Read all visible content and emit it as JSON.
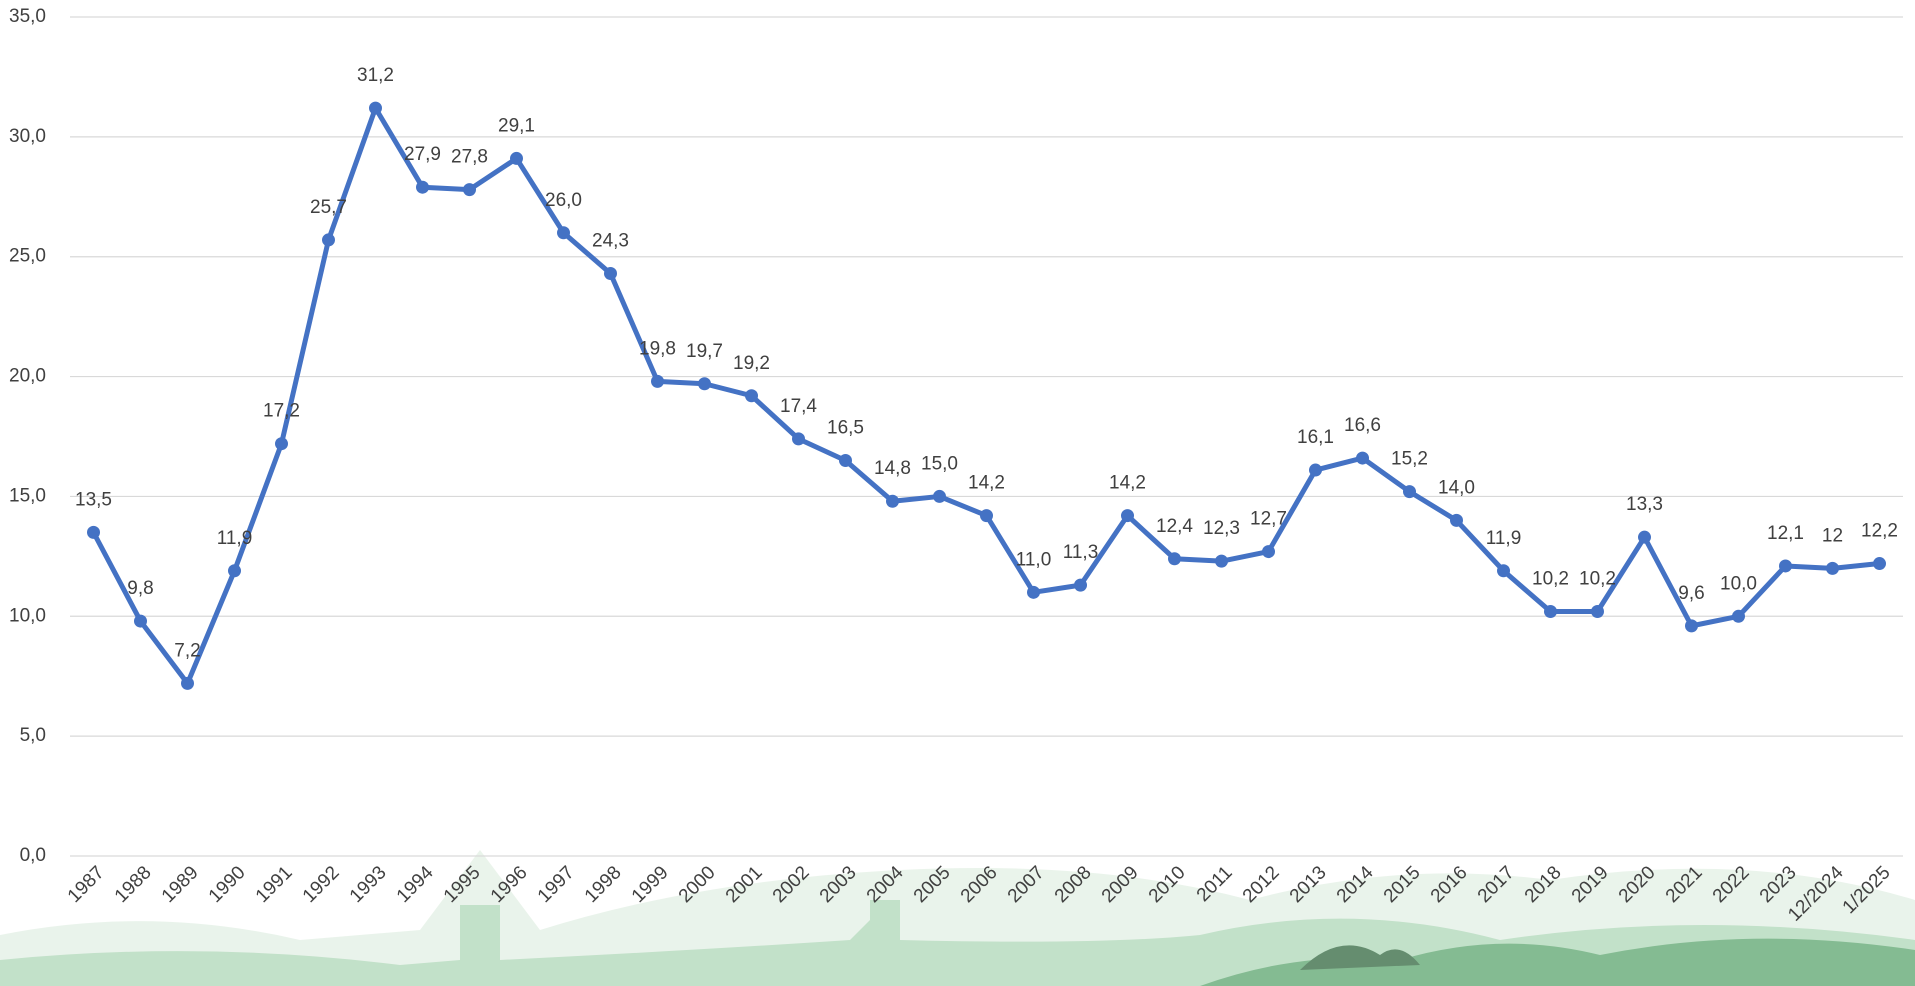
{
  "chart_data": {
    "type": "line",
    "categories": [
      "1987",
      "1988",
      "1989",
      "1990",
      "1991",
      "1992",
      "1993",
      "1994",
      "1995",
      "1996",
      "1997",
      "1998",
      "1999",
      "2000",
      "2001",
      "2002",
      "2003",
      "2004",
      "2005",
      "2006",
      "2007",
      "2008",
      "2009",
      "2010",
      "2011",
      "2012",
      "2013",
      "2014",
      "2015",
      "2016",
      "2017",
      "2018",
      "2019",
      "2020",
      "2021",
      "2022",
      "2023",
      "12/2024",
      "1/2025"
    ],
    "series": [
      {
        "name": null,
        "color": "#4472c4",
        "values": [
          13.5,
          9.8,
          7.2,
          11.9,
          17.2,
          25.7,
          31.2,
          27.9,
          27.8,
          29.1,
          26.0,
          24.3,
          19.8,
          19.7,
          19.2,
          17.4,
          16.5,
          14.8,
          15.0,
          14.2,
          11.0,
          11.3,
          14.2,
          12.4,
          12.3,
          12.7,
          16.1,
          16.6,
          15.2,
          14.0,
          11.9,
          10.2,
          10.2,
          13.3,
          9.6,
          10.0,
          12.1,
          12,
          12.2
        ],
        "value_labels": [
          "13,5",
          "9,8",
          "7,2",
          "11,9",
          "17,2",
          "25,7",
          "31,2",
          "27,9",
          "27,8",
          "29,1",
          "26,0",
          "24,3",
          "19,8",
          "19,7",
          "19,2",
          "17,4",
          "16,5",
          "14,8",
          "15,0",
          "14,2",
          "11,0",
          "11,3",
          "14,2",
          "12,4",
          "12,3",
          "12,7",
          "16,1",
          "16,6",
          "15,2",
          "14,0",
          "11,9",
          "10,2",
          "10,2",
          "13,3",
          "9,6",
          "10,0",
          "12,1",
          "12",
          "12,2"
        ]
      }
    ],
    "ylim": [
      0,
      35
    ],
    "yticks": [
      {
        "value": 0,
        "label": "0,0"
      },
      {
        "value": 5,
        "label": "5,0"
      },
      {
        "value": 10,
        "label": "10,0"
      },
      {
        "value": 15,
        "label": "15,0"
      },
      {
        "value": 20,
        "label": "20,0"
      },
      {
        "value": 25,
        "label": "25,0"
      },
      {
        "value": 30,
        "label": "30,0"
      },
      {
        "value": 35,
        "label": "35,0"
      }
    ],
    "grid": true
  }
}
